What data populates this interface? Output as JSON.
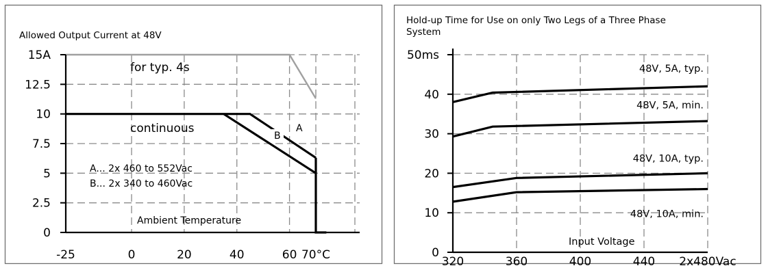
{
  "chart_data": [
    {
      "type": "line",
      "title": "Allowed Output Current at 48V",
      "xlabel": "Ambient Temperature",
      "ylabel": "",
      "xlim": [
        -25,
        70
      ],
      "ylim": [
        0,
        15
      ],
      "x_ticks": [
        "-25",
        "0",
        "20",
        "40",
        "60",
        "70°C"
      ],
      "y_ticks": [
        "15A",
        "12.5",
        "10",
        "7.5",
        "5",
        "2.5",
        "0"
      ],
      "grid": true,
      "series": [
        {
          "name": "for typ. 4s",
          "color": "#a0a0a0",
          "x": [
            -25,
            60,
            70
          ],
          "y": [
            15,
            15,
            11.3
          ]
        },
        {
          "name": "A",
          "color": "#000000",
          "x": [
            -25,
            45,
            70
          ],
          "y": [
            10,
            10,
            6.3
          ]
        },
        {
          "name": "B",
          "color": "#000000",
          "x": [
            35,
            70
          ],
          "y": [
            10,
            5
          ]
        },
        {
          "name": "continuous",
          "color": "#000000",
          "x": [
            70,
            70,
            74
          ],
          "y": [
            6.3,
            0,
            0
          ]
        }
      ],
      "annotations": [
        "for typ. 4s",
        "continuous",
        "A",
        "B"
      ],
      "legend_text": [
        "A... 2x 460 to 552Vac",
        "B... 2x 340 to 460Vac"
      ]
    },
    {
      "type": "line",
      "title": "Hold-up Time for Use on only Two Legs of a Three Phase System",
      "title_lines": [
        "Hold-up Time for Use on only Two Legs of a Three Phase",
        "System"
      ],
      "xlabel": "Input Voltage",
      "ylabel": "",
      "xlim": [
        320,
        480
      ],
      "ylim": [
        0,
        50
      ],
      "x_ticks": [
        "320",
        "360",
        "400",
        "440",
        "2x480Vac"
      ],
      "y_ticks": [
        "50ms",
        "40",
        "30",
        "20",
        "10",
        "0"
      ],
      "grid": true,
      "series": [
        {
          "name": "48V, 5A, typ.",
          "color": "#000000",
          "x": [
            320,
            345,
            480
          ],
          "y": [
            38,
            40.4,
            42
          ]
        },
        {
          "name": "48V, 5A, min.",
          "color": "#000000",
          "x": [
            320,
            345,
            480
          ],
          "y": [
            29.3,
            31.8,
            33.2
          ]
        },
        {
          "name": "48V, 10A, typ.",
          "color": "#000000",
          "x": [
            320,
            360,
            480
          ],
          "y": [
            16.5,
            18.8,
            20
          ]
        },
        {
          "name": "48V, 10A, min.",
          "color": "#000000",
          "x": [
            320,
            360,
            480
          ],
          "y": [
            12.8,
            15.2,
            16
          ]
        }
      ]
    }
  ]
}
